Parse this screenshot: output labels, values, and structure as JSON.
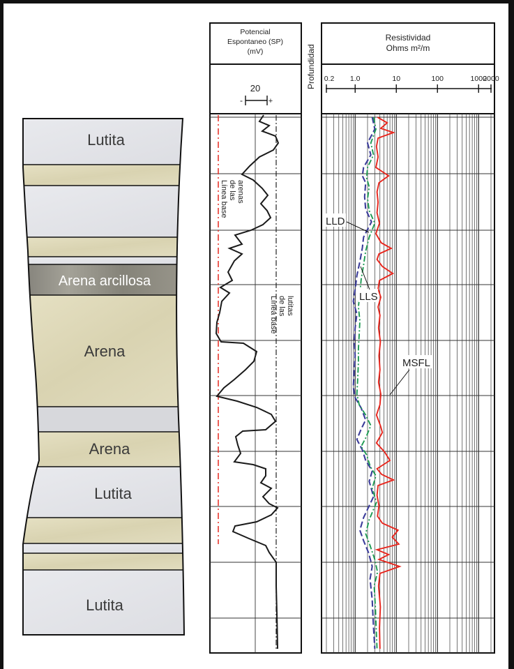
{
  "lithology": {
    "lutita_1": "Lutita",
    "arena_arcillosa": "Arena arcillosa",
    "arena_1": "Arena",
    "arena_2": "Arena",
    "lutita_2": "Lutita",
    "lutita_3": "Lutita"
  },
  "sp_track": {
    "header_line1": "Potencial",
    "header_line2": "Espontaneo (SP)",
    "header_line3": "(mV)",
    "scale_value": "20",
    "scale_minus": "-",
    "scale_plus": "+",
    "sand_baseline_line1": "Línea base",
    "sand_baseline_line2": "de las",
    "sand_baseline_line3": "arenas",
    "shale_baseline_line1": "Línea base",
    "shale_baseline_line2": "de las",
    "shale_baseline_line3": "lutitas"
  },
  "depth_track": {
    "label": "Profundidad"
  },
  "resistivity_track": {
    "header_line1": "Resistividad",
    "header_line2": "Ohms m²/m",
    "ticks": [
      "0.2",
      "1.0",
      "10",
      "100",
      "1000",
      "2000"
    ],
    "curve_labels": {
      "lld": "LLD",
      "lls": "LLS",
      "msfl": "MSFL"
    }
  },
  "colors": {
    "shale": "#e4e5e9",
    "sand": "#ddd8b8",
    "shaly_sand": "#8f8d86",
    "sp_curve": "#1a1a1a",
    "sand_baseline": "#e8372e",
    "lld_curve": "#3b3c9a",
    "lls_curve": "#1c9a52",
    "msfl_curve": "#e8251c"
  }
}
